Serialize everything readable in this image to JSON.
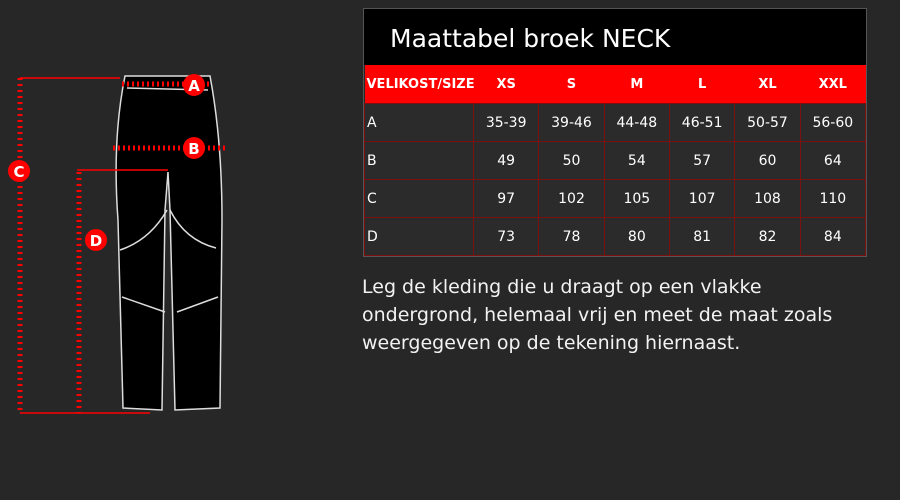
{
  "diagram": {
    "labels": [
      "A",
      "B",
      "C",
      "D"
    ],
    "accent_color": "#ff0000"
  },
  "table": {
    "title": "Maattabel broek NECK",
    "header": [
      "VELIKOST/SIZE",
      "XS",
      "S",
      "M",
      "L",
      "XL",
      "XXL"
    ],
    "rows": [
      [
        "A",
        "35-39",
        "39-46",
        "44-48",
        "46-51",
        "50-57",
        "56-60"
      ],
      [
        "B",
        "49",
        "50",
        "54",
        "57",
        "60",
        "64"
      ],
      [
        "C",
        "97",
        "102",
        "105",
        "107",
        "108",
        "110"
      ],
      [
        "D",
        "73",
        "78",
        "80",
        "81",
        "82",
        "84"
      ]
    ],
    "header_color": "#ff0000"
  },
  "note": "Leg de kleding die u draagt op een vlakke ondergrond, helemaal vrij en meet de maat zoals weergegeven op de tekening hiernaast."
}
